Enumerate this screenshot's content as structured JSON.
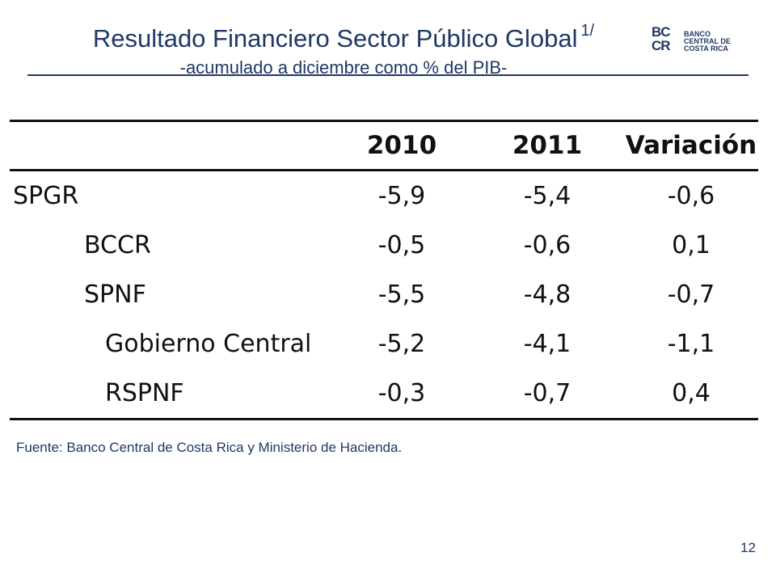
{
  "header": {
    "title": "Resultado Financiero Sector Público Global",
    "title_superscript": "1/",
    "subtitle": "-acumulado a diciembre como % del PIB-"
  },
  "logo": {
    "mark": "BC CR",
    "text_line1": "BANCO",
    "text_line2": "CENTRAL DE",
    "text_line3": "COSTA RICA"
  },
  "table": {
    "columns": [
      "",
      "2010",
      "2011",
      "Variación"
    ],
    "rows": [
      {
        "label": "SPGR",
        "level": 0,
        "values": [
          "-5,9",
          "-5,4",
          "-0,6"
        ]
      },
      {
        "label": "BCCR",
        "level": 1,
        "values": [
          "-0,5",
          "-0,6",
          "0,1"
        ]
      },
      {
        "label": "SPNF",
        "level": 1,
        "values": [
          "-5,5",
          "-4,8",
          "-0,7"
        ]
      },
      {
        "label": "Gobierno Central",
        "level": 2,
        "values": [
          "-5,2",
          "-4,1",
          "-1,1"
        ]
      },
      {
        "label": "RSPNF",
        "level": 2,
        "values": [
          "-0,3",
          "-0,7",
          "0,4"
        ]
      }
    ]
  },
  "footer": {
    "source": "Fuente: Banco Central de Costa Rica y Ministerio de Hacienda.",
    "page_number": "12"
  },
  "colors": {
    "accent": "#1f3864"
  }
}
